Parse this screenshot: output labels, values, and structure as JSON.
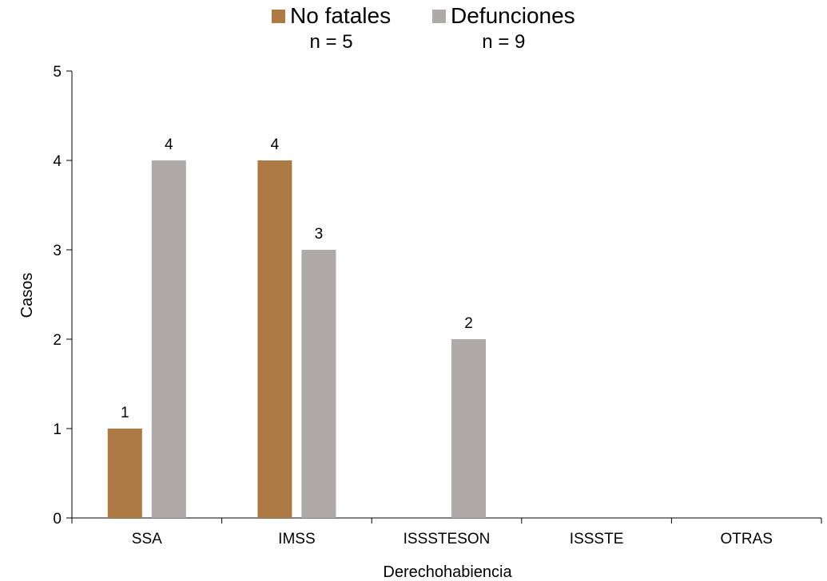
{
  "chart_data": {
    "type": "bar",
    "categories": [
      "SSA",
      "IMSS",
      "ISSSTESON",
      "ISSSTE",
      "OTRAS"
    ],
    "series": [
      {
        "name": "No fatales",
        "n_label": "n = 5",
        "color": "#AD7A45",
        "values": [
          1,
          4,
          0,
          0,
          0
        ]
      },
      {
        "name": "Defunciones",
        "n_label": "n = 9",
        "color": "#AEAAAA",
        "values": [
          4,
          3,
          2,
          0,
          0
        ]
      }
    ],
    "xlabel": "Derechohabiencia",
    "ylabel": "Casos",
    "ylim": [
      0,
      5
    ],
    "yticks": [
      "0",
      "1",
      "2",
      "3",
      "4",
      "5"
    ],
    "grid": false,
    "legend_position": "top"
  }
}
